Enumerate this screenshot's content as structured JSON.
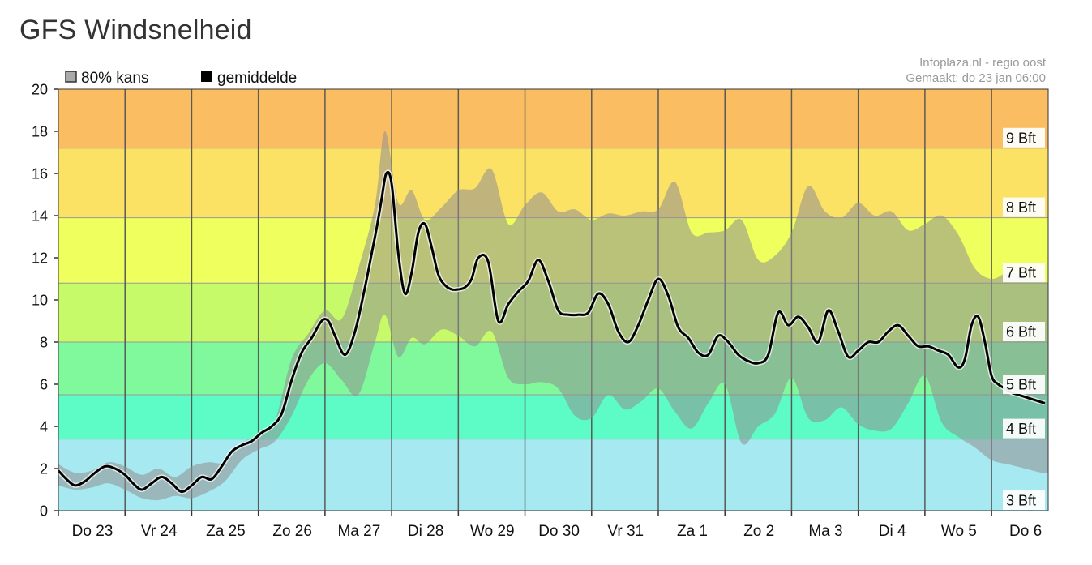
{
  "page": {
    "title": "GFS Windsnelheid"
  },
  "chart_data": {
    "type": "line",
    "title": "GFS Windsnelheid",
    "credit_lines": [
      "Infoplaza.nl - regio oost",
      "Gemaakt: do 23 jan 06:00"
    ],
    "legend": [
      {
        "label": "80% kans",
        "color": "#aaaaaa"
      },
      {
        "label": "gemiddelde",
        "color": "#000000"
      }
    ],
    "xlabel": "",
    "ylabel": "",
    "ylim": [
      0,
      20
    ],
    "xlim": [
      0,
      14.85
    ],
    "yticks": [
      0,
      2,
      4,
      6,
      8,
      10,
      12,
      14,
      16,
      18,
      20
    ],
    "day_labels": [
      "Do 23",
      "Vr 24",
      "Za 25",
      "Zo 26",
      "Ma 27",
      "Di 28",
      "Wo 29",
      "Do 30",
      "Vr 31",
      "Za 1",
      "Zo 2",
      "Ma 3",
      "Di 4",
      "Wo 5",
      "Do 6"
    ],
    "beaufort_bands": [
      {
        "from": 0,
        "to": 3.4,
        "color": "#a6e9f0",
        "label": "3 Bft"
      },
      {
        "from": 3.4,
        "to": 5.5,
        "color": "#5dfbc5",
        "label": "4 Bft"
      },
      {
        "from": 5.5,
        "to": 8.0,
        "color": "#7ff99c",
        "label": "5 Bft"
      },
      {
        "from": 8.0,
        "to": 10.8,
        "color": "#c7fa68",
        "label": "6 Bft"
      },
      {
        "from": 10.8,
        "to": 13.9,
        "color": "#eeff5e",
        "label": "7 Bft"
      },
      {
        "from": 13.9,
        "to": 17.2,
        "color": "#fbe164",
        "label": "8 Bft"
      },
      {
        "from": 17.2,
        "to": 20.0,
        "color": "#fbbd62",
        "label": "9 Bft"
      }
    ],
    "grid": true,
    "series": [
      {
        "name": "gemiddelde",
        "color": "#000000",
        "x": [
          0,
          0.12,
          0.25,
          0.4,
          0.55,
          0.7,
          0.85,
          1.0,
          1.12,
          1.25,
          1.4,
          1.55,
          1.7,
          1.85,
          2.0,
          2.15,
          2.3,
          2.45,
          2.6,
          2.75,
          2.9,
          3.05,
          3.2,
          3.35,
          3.5,
          3.65,
          3.8,
          3.95,
          4.05,
          4.15,
          4.3,
          4.45,
          4.6,
          4.7,
          4.78,
          4.85,
          4.92,
          5.0,
          5.1,
          5.2,
          5.3,
          5.4,
          5.5,
          5.6,
          5.7,
          5.8,
          5.9,
          6.0,
          6.1,
          6.2,
          6.3,
          6.45,
          6.6,
          6.75,
          6.9,
          7.05,
          7.2,
          7.35,
          7.5,
          7.65,
          7.8,
          7.95,
          8.1,
          8.25,
          8.4,
          8.55,
          8.7,
          8.85,
          9.0,
          9.15,
          9.3,
          9.45,
          9.6,
          9.75,
          9.9,
          10.05,
          10.2,
          10.35,
          10.5,
          10.65,
          10.8,
          10.95,
          11.1,
          11.25,
          11.4,
          11.55,
          11.7,
          11.85,
          12.0,
          12.15,
          12.3,
          12.45,
          12.6,
          12.75,
          12.9,
          13.05,
          13.2,
          13.35,
          13.5,
          13.6,
          13.7,
          13.8,
          13.9,
          14.0,
          14.1,
          14.2,
          14.3,
          14.4,
          14.5,
          14.6,
          14.7,
          14.8
        ],
        "values": [
          1.9,
          1.5,
          1.2,
          1.4,
          1.8,
          2.1,
          2.0,
          1.7,
          1.3,
          1.0,
          1.3,
          1.6,
          1.3,
          0.9,
          1.2,
          1.6,
          1.5,
          2.1,
          2.8,
          3.1,
          3.3,
          3.7,
          4.0,
          4.6,
          6.2,
          7.5,
          8.2,
          9.0,
          9.0,
          8.3,
          7.4,
          8.5,
          10.6,
          12.2,
          13.5,
          14.8,
          16.0,
          15.5,
          12.2,
          10.3,
          11.3,
          13.2,
          13.6,
          12.5,
          11.2,
          10.7,
          10.5,
          10.5,
          10.6,
          11.0,
          12.0,
          11.8,
          9.0,
          9.8,
          10.4,
          10.9,
          11.9,
          10.9,
          9.5,
          9.3,
          9.3,
          9.4,
          10.3,
          9.8,
          8.5,
          8.0,
          8.8,
          10.0,
          11.0,
          10.2,
          8.7,
          8.2,
          7.5,
          7.4,
          8.3,
          8.0,
          7.4,
          7.1,
          7.0,
          7.4,
          9.4,
          8.8,
          9.2,
          8.7,
          8.0,
          9.5,
          8.5,
          7.3,
          7.6,
          8.0,
          8.0,
          8.5,
          8.8,
          8.3,
          7.8,
          7.8,
          7.6,
          7.4,
          6.8,
          7.2,
          8.8,
          9.2,
          8.0,
          6.4,
          6.0,
          5.8,
          5.6,
          5.5,
          5.4,
          5.3,
          5.2,
          5.1
        ]
      },
      {
        "name": "80% kans",
        "color": "#aaaaaa",
        "x": [
          0,
          0.25,
          0.5,
          0.75,
          1.0,
          1.25,
          1.5,
          1.75,
          2.0,
          2.25,
          2.5,
          2.75,
          3.0,
          3.25,
          3.5,
          3.75,
          4.0,
          4.25,
          4.5,
          4.75,
          4.9,
          5.1,
          5.3,
          5.5,
          5.75,
          6.0,
          6.25,
          6.5,
          6.75,
          7.0,
          7.25,
          7.5,
          7.75,
          8.0,
          8.25,
          8.5,
          8.75,
          9.0,
          9.25,
          9.5,
          9.75,
          10.0,
          10.25,
          10.5,
          10.75,
          11.0,
          11.25,
          11.5,
          11.75,
          12.0,
          12.25,
          12.5,
          12.75,
          13.0,
          13.25,
          13.5,
          13.75,
          14.0,
          14.25,
          14.5,
          14.75,
          14.85
        ],
        "upper": [
          2.2,
          1.8,
          1.9,
          2.3,
          2.1,
          1.7,
          2.0,
          1.6,
          2.1,
          2.3,
          2.3,
          3.2,
          3.6,
          4.3,
          7.2,
          8.4,
          9.5,
          9.1,
          11.5,
          14.5,
          18.0,
          14.6,
          15.2,
          13.8,
          14.4,
          15.2,
          15.3,
          16.2,
          13.6,
          14.5,
          15.1,
          14.2,
          14.3,
          13.8,
          14.1,
          14.0,
          14.2,
          14.3,
          15.6,
          13.2,
          13.2,
          13.3,
          13.8,
          11.9,
          12.1,
          13.2,
          15.4,
          14.2,
          13.9,
          14.6,
          14.0,
          14.2,
          13.3,
          13.6,
          14.0,
          13.1,
          11.5,
          11.0,
          11.3,
          11.1,
          10.9,
          10.8
        ],
        "lower": [
          1.2,
          1.0,
          1.1,
          1.3,
          1.0,
          0.6,
          0.5,
          0.7,
          0.6,
          0.9,
          1.4,
          2.4,
          2.9,
          3.3,
          4.5,
          6.2,
          7.0,
          6.2,
          5.5,
          8.0,
          9.3,
          7.3,
          8.2,
          7.9,
          8.6,
          8.3,
          7.8,
          8.5,
          6.3,
          6.0,
          6.1,
          5.8,
          4.5,
          4.4,
          5.5,
          4.8,
          5.2,
          5.8,
          4.7,
          3.9,
          5.1,
          6.0,
          3.2,
          4.0,
          4.6,
          6.3,
          4.4,
          4.3,
          4.9,
          4.1,
          3.8,
          3.9,
          5.1,
          6.4,
          4.2,
          3.5,
          3.0,
          2.4,
          2.2,
          2.0,
          1.8,
          1.8
        ]
      }
    ]
  }
}
